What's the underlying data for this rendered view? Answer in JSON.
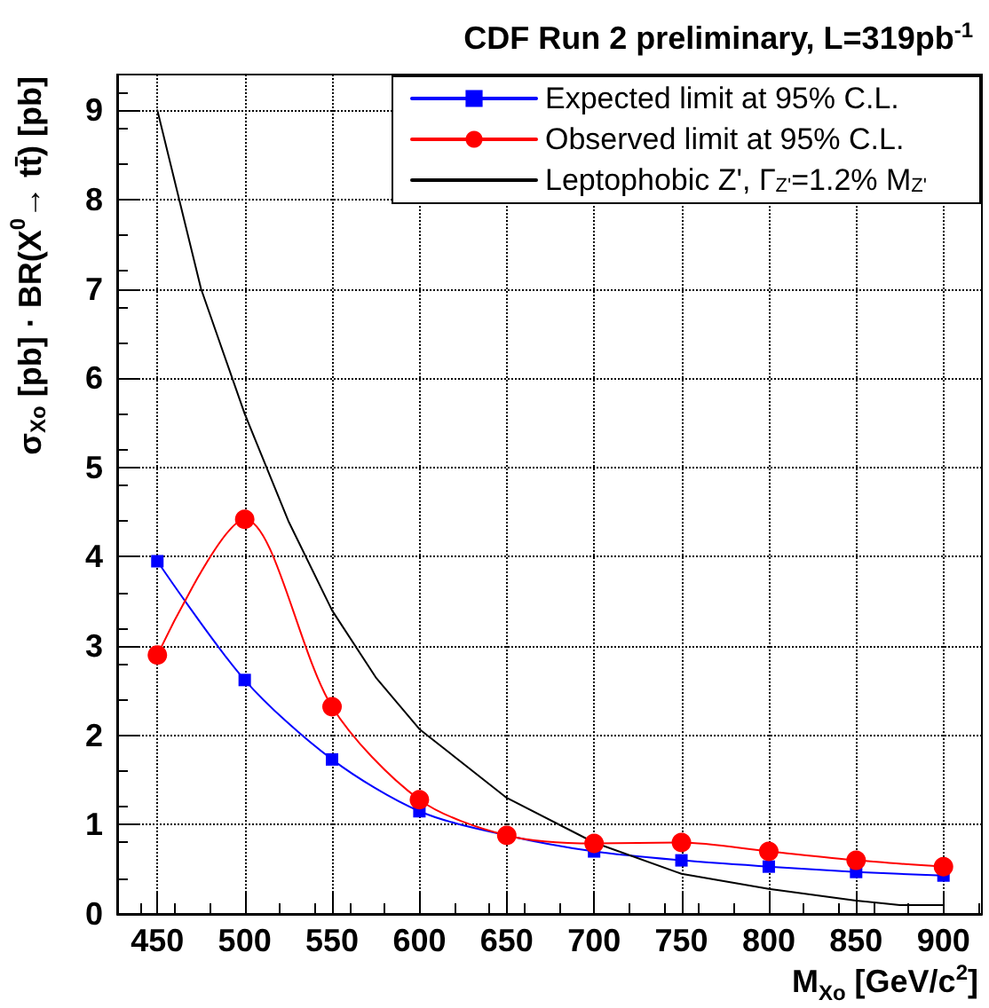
{
  "chart_data": {
    "type": "line",
    "title": "CDF Run 2 preliminary, L=319pb$^{-1}$",
    "xlabel": "M$_{Xo}$ [GeV/c$^{2}$]",
    "ylabel": "σ$_{Xo}$ [pb] · BR(X$^{0}$→ tt̄) [pb]",
    "xlim": [
      427,
      922
    ],
    "xticks": [
      450,
      500,
      550,
      600,
      650,
      700,
      750,
      800,
      850,
      900
    ],
    "ylim": [
      0,
      9.4
    ],
    "yticks": [
      0,
      1,
      2,
      3,
      4,
      5,
      6,
      7,
      8,
      9
    ],
    "grid": true,
    "legend": "top right",
    "line_style": "solid",
    "series": [
      {
        "name": "Expected limit at 95% C.L.",
        "color": "#0000ff",
        "marker": "square",
        "x": [
          450,
          500,
          550,
          600,
          650,
          700,
          750,
          800,
          850,
          900
        ],
        "values": [
          3.95,
          2.62,
          1.73,
          1.15,
          0.88,
          0.7,
          0.6,
          0.53,
          0.47,
          0.43
        ]
      },
      {
        "name": "Observed limit at 95% C.L.",
        "color": "#ff0000",
        "marker": "circle",
        "x": [
          450,
          500,
          550,
          600,
          650,
          700,
          750,
          800,
          850,
          900
        ],
        "values": [
          2.9,
          4.42,
          2.32,
          1.28,
          0.88,
          0.79,
          0.8,
          0.7,
          0.6,
          0.53
        ]
      },
      {
        "name": "Leptophobic Z', Γ$_{Z'}$=1.2% M$_{Z'}$",
        "color": "#000000",
        "marker": "none",
        "x": [
          450,
          475,
          500,
          525,
          550,
          575,
          600,
          650,
          700,
          750,
          800,
          850,
          875,
          900
        ],
        "values": [
          9.0,
          7.0,
          5.6,
          4.4,
          3.4,
          2.65,
          2.07,
          1.3,
          0.8,
          0.45,
          0.28,
          0.15,
          0.1,
          0.1
        ]
      }
    ]
  }
}
